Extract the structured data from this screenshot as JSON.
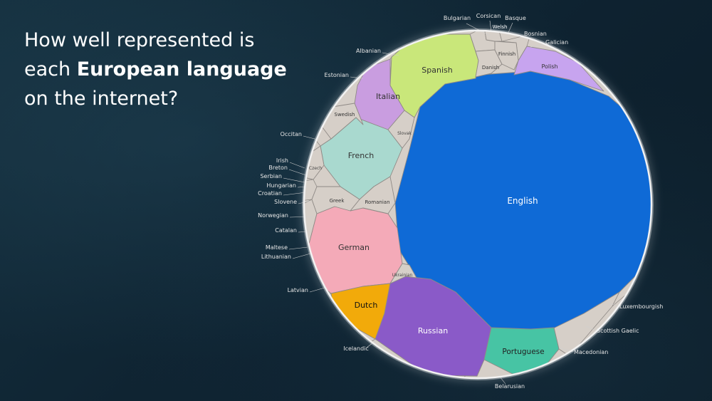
{
  "title": {
    "line1": "How well represented is",
    "line2_prefix": "each ",
    "line2_bold": "European language",
    "line3": "on the internet?"
  },
  "chart_data": {
    "type": "voronoi-treemap",
    "languages": [
      {
        "name": "English",
        "color": "#0f6ad6"
      },
      {
        "name": "Spanish",
        "color": "#c9e77a"
      },
      {
        "name": "Italian",
        "color": "#c99de0"
      },
      {
        "name": "French",
        "color": "#a9d9cf"
      },
      {
        "name": "German",
        "color": "#f4aab8"
      },
      {
        "name": "Russian",
        "color": "#8a5ac8"
      },
      {
        "name": "Dutch",
        "color": "#f2aa0a"
      },
      {
        "name": "Portuguese",
        "color": "#47c4a4"
      },
      {
        "name": "Polish",
        "color": "#c7a4ef"
      },
      {
        "name": "Danish",
        "color": "#d6cfc8"
      },
      {
        "name": "Swedish",
        "color": "#d6cfc8"
      },
      {
        "name": "Slovak",
        "color": "#d6cfc8"
      },
      {
        "name": "Czech",
        "color": "#d6cfc8"
      },
      {
        "name": "Greek",
        "color": "#d6cfc8"
      },
      {
        "name": "Romanian",
        "color": "#d6cfc8"
      },
      {
        "name": "Ukrainian",
        "color": "#d6cfc8"
      },
      {
        "name": "Finnish",
        "color": "#d6cfc8"
      },
      {
        "name": "Welsh",
        "color": "#d6cfc8"
      }
    ],
    "outside_labels": [
      "Bulgarian",
      "Corsican",
      "Basque",
      "Bosnian",
      "Galician",
      "Albanian",
      "Estonian",
      "Occitan",
      "Irish",
      "Breton",
      "Serbian",
      "Hungarian",
      "Croatian",
      "Slovene",
      "Norwegian",
      "Catalan",
      "Maltese",
      "Lithuanian",
      "Latvian",
      "Icelandic",
      "Belarusian",
      "Macedonian",
      "Scottish Gaelic",
      "Luxembourgish"
    ]
  },
  "colors": {
    "background": "#102533",
    "small_cell": "#d6cfc8",
    "cell_border": "#8f8a86",
    "circle_outline": "#f2f2f2"
  }
}
